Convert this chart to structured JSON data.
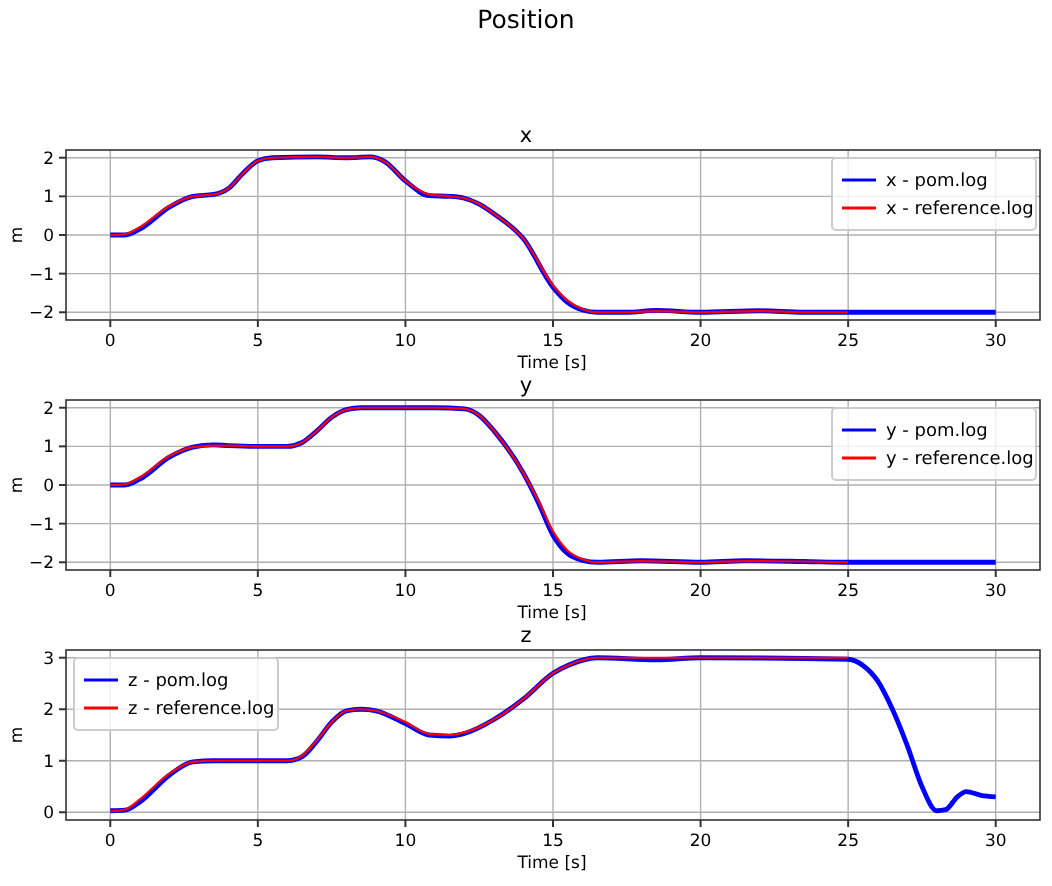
{
  "chart_data": [
    {
      "type": "line",
      "title": "x",
      "xlabel": "Time [s]",
      "ylabel": "m",
      "annotations": [
        "Position"
      ],
      "legend": "top right",
      "grid": true,
      "xlim": [
        -1.5,
        31.5
      ],
      "xticks": [
        0,
        5,
        10,
        15,
        20,
        25,
        30
      ],
      "ylim": [
        -2.2,
        2.2
      ],
      "yticks": [
        -2,
        -1,
        0,
        1,
        2
      ],
      "series": [
        {
          "name": "x - pom.log",
          "color": "#0000ff",
          "x": [
            0,
            0.5,
            1,
            2,
            2.8,
            3.5,
            4,
            4.5,
            5,
            5.5,
            7,
            8,
            8.8,
            9.3,
            10,
            10.8,
            11.5,
            12,
            12.5,
            13,
            14,
            15,
            15.5,
            16,
            16.5,
            17.5,
            18.5,
            20,
            22,
            23.5,
            25,
            27,
            30
          ],
          "values": [
            0,
            0.0,
            0.15,
            0.72,
            1.0,
            1.05,
            1.2,
            1.6,
            1.92,
            2.0,
            2.02,
            2.0,
            2.02,
            1.9,
            1.4,
            1.02,
            1.0,
            0.95,
            0.8,
            0.55,
            -0.1,
            -1.35,
            -1.75,
            -1.94,
            -2.0,
            -2.0,
            -1.95,
            -2.0,
            -1.96,
            -2.0,
            -2.0,
            -2.0,
            -2.0
          ]
        },
        {
          "name": "x - reference.log",
          "color": "#ff0000",
          "x": [
            0,
            0.5,
            1,
            2,
            2.8,
            3.5,
            4,
            4.5,
            5,
            5.5,
            7,
            8,
            8.8,
            9.3,
            10,
            10.8,
            11.5,
            12,
            12.5,
            13,
            14,
            15,
            15.5,
            16,
            16.5,
            17.5,
            18.5,
            20,
            22,
            23.5,
            25
          ],
          "values": [
            0,
            0.02,
            0.2,
            0.75,
            1.0,
            1.05,
            1.2,
            1.6,
            1.92,
            2.0,
            2.02,
            2.0,
            2.02,
            1.9,
            1.4,
            1.05,
            1.0,
            0.95,
            0.8,
            0.55,
            -0.1,
            -1.3,
            -1.7,
            -1.92,
            -2.0,
            -2.0,
            -1.97,
            -2.0,
            -1.97,
            -2.0,
            -2.0
          ]
        }
      ]
    },
    {
      "type": "line",
      "title": "y",
      "xlabel": "Time [s]",
      "ylabel": "m",
      "legend": "top right",
      "grid": true,
      "xlim": [
        -1.5,
        31.5
      ],
      "xticks": [
        0,
        5,
        10,
        15,
        20,
        25,
        30
      ],
      "ylim": [
        -2.2,
        2.2
      ],
      "yticks": [
        -2,
        -1,
        0,
        1,
        2
      ],
      "series": [
        {
          "name": "y - pom.log",
          "color": "#0000ff",
          "x": [
            0,
            0.5,
            1,
            2,
            2.8,
            3.5,
            4,
            5,
            6,
            6.5,
            7,
            7.5,
            8,
            8.5,
            10,
            11,
            12,
            12.5,
            13,
            14,
            14.5,
            15,
            15.5,
            16,
            16.5,
            18,
            20,
            21.5,
            23.5,
            25,
            27,
            30
          ],
          "values": [
            0,
            0.0,
            0.15,
            0.72,
            0.98,
            1.04,
            1.02,
            1.0,
            1.0,
            1.1,
            1.4,
            1.75,
            1.95,
            2.0,
            2.0,
            2.0,
            1.97,
            1.8,
            1.4,
            0.3,
            -0.45,
            -1.3,
            -1.78,
            -1.95,
            -2.0,
            -1.96,
            -2.0,
            -1.96,
            -1.98,
            -2.0,
            -2.0,
            -2.0
          ]
        },
        {
          "name": "y - reference.log",
          "color": "#ff0000",
          "x": [
            0,
            0.5,
            1,
            2,
            2.8,
            3.5,
            4,
            5,
            6,
            6.5,
            7,
            7.5,
            8,
            8.5,
            10,
            11,
            12,
            12.5,
            13,
            14,
            14.5,
            15,
            15.5,
            16,
            16.5,
            18,
            20,
            21.5,
            23.5,
            25
          ],
          "values": [
            0,
            0.02,
            0.2,
            0.75,
            0.98,
            1.02,
            1.02,
            1.0,
            1.0,
            1.1,
            1.4,
            1.75,
            1.95,
            2.0,
            2.0,
            2.0,
            1.97,
            1.8,
            1.4,
            0.3,
            -0.4,
            -1.2,
            -1.7,
            -1.92,
            -2.0,
            -1.97,
            -2.0,
            -1.97,
            -1.98,
            -2.0
          ]
        }
      ]
    },
    {
      "type": "line",
      "title": "z",
      "xlabel": "Time [s]",
      "ylabel": "m",
      "legend": "top left",
      "grid": true,
      "xlim": [
        -1.5,
        31.5
      ],
      "xticks": [
        0,
        5,
        10,
        15,
        20,
        25,
        30
      ],
      "ylim": [
        -0.15,
        3.15
      ],
      "yticks": [
        0,
        1,
        2,
        3
      ],
      "series": [
        {
          "name": "z - pom.log",
          "color": "#0000ff",
          "x": [
            0,
            0.5,
            1,
            2,
            2.8,
            3.5,
            6,
            6.5,
            7,
            7.5,
            8,
            8.5,
            9,
            10,
            10.8,
            11.5,
            12,
            13,
            14,
            15,
            15.5,
            16.5,
            18.5,
            20,
            25,
            25.5,
            26,
            26.5,
            27,
            27.5,
            28,
            28.3,
            28.7,
            29,
            29.5,
            30
          ],
          "values": [
            0.03,
            0.04,
            0.2,
            0.72,
            0.98,
            1.0,
            1.0,
            1.08,
            1.38,
            1.75,
            1.97,
            2.0,
            1.97,
            1.72,
            1.5,
            1.48,
            1.53,
            1.8,
            2.2,
            2.7,
            2.85,
            3.0,
            2.96,
            3.0,
            2.97,
            2.85,
            2.55,
            2.0,
            1.3,
            0.5,
            0.03,
            0.05,
            0.3,
            0.4,
            0.33,
            0.3
          ]
        },
        {
          "name": "z - reference.log",
          "color": "#ff0000",
          "x": [
            0,
            0.5,
            1,
            2,
            2.8,
            3.5,
            6,
            6.5,
            7,
            7.5,
            8,
            8.5,
            9,
            10,
            10.8,
            11.5,
            12,
            13,
            14,
            15,
            15.5,
            16.5,
            18,
            20,
            25
          ],
          "values": [
            0.02,
            0.05,
            0.25,
            0.75,
            0.98,
            1.0,
            1.0,
            1.1,
            1.4,
            1.75,
            1.97,
            2.0,
            1.97,
            1.75,
            1.52,
            1.5,
            1.55,
            1.8,
            2.2,
            2.7,
            2.85,
            3.0,
            3.0,
            3.0,
            3.0
          ]
        }
      ]
    }
  ]
}
